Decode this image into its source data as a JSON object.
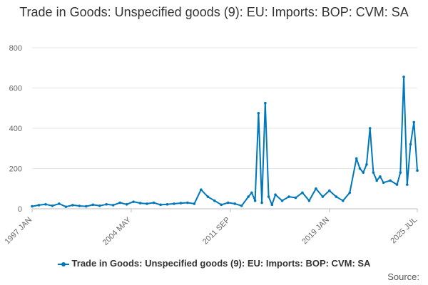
{
  "chart_data": {
    "type": "line",
    "title": "Trade in Goods: Unspecified goods (9): EU: Imports: BOP: CVM: SA",
    "xlabel": "",
    "ylabel": "",
    "ylim": [
      0,
      800
    ],
    "yticks": [
      0,
      200,
      400,
      600,
      800
    ],
    "xticks": [
      "1997 JAN",
      "2004 MAY",
      "2011 SEP",
      "2019 JAN",
      "2025 JUL"
    ],
    "grid": "horizontal",
    "legend_position": "bottom",
    "series_color": "#0077bb",
    "series": [
      {
        "name": "Trade in Goods: Unspecified goods (9): EU: Imports: BOP: CVM: SA",
        "x": [
          "1997-01",
          "1997-07",
          "1998-01",
          "1998-07",
          "1999-01",
          "1999-07",
          "2000-01",
          "2000-07",
          "2001-01",
          "2001-07",
          "2002-01",
          "2002-07",
          "2003-01",
          "2003-07",
          "2004-01",
          "2004-07",
          "2005-01",
          "2005-07",
          "2006-01",
          "2006-07",
          "2007-01",
          "2007-07",
          "2008-01",
          "2008-07",
          "2009-01",
          "2009-07",
          "2010-01",
          "2010-07",
          "2011-01",
          "2011-07",
          "2012-01",
          "2012-07",
          "2013-01",
          "2013-04",
          "2013-07",
          "2013-10",
          "2014-01",
          "2014-04",
          "2014-07",
          "2014-10",
          "2015-01",
          "2015-07",
          "2016-01",
          "2016-07",
          "2017-01",
          "2017-07",
          "2018-01",
          "2018-07",
          "2019-01",
          "2019-07",
          "2020-01",
          "2020-07",
          "2021-01",
          "2021-04",
          "2021-07",
          "2021-10",
          "2022-01",
          "2022-04",
          "2022-07",
          "2022-10",
          "2023-01",
          "2023-07",
          "2024-01",
          "2024-04",
          "2024-07",
          "2024-10",
          "2025-01",
          "2025-04",
          "2025-07"
        ],
        "values": [
          12,
          18,
          22,
          15,
          25,
          10,
          18,
          14,
          12,
          20,
          15,
          22,
          18,
          30,
          22,
          35,
          28,
          25,
          30,
          20,
          22,
          25,
          28,
          30,
          25,
          95,
          60,
          40,
          20,
          30,
          25,
          15,
          60,
          80,
          40,
          475,
          30,
          525,
          60,
          20,
          70,
          40,
          60,
          55,
          80,
          40,
          100,
          60,
          90,
          60,
          40,
          80,
          250,
          200,
          180,
          220,
          400,
          180,
          140,
          160,
          130,
          140,
          120,
          180,
          655,
          120,
          320,
          430,
          190
        ]
      }
    ]
  },
  "footer": {
    "source_label": "Source:"
  }
}
